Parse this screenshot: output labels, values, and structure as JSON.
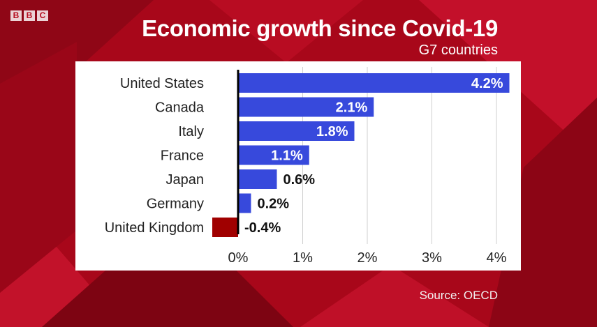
{
  "branding": {
    "logo_letters": [
      "B",
      "B",
      "C"
    ],
    "logo_color": "#b50c1e"
  },
  "colors": {
    "background": "#a8071a",
    "positive_bar": "#3749dc",
    "negative_bar": "#a00000",
    "grid": "#cfcfcf",
    "zero_axis": "#000000"
  },
  "chart_data": {
    "type": "bar",
    "orientation": "horizontal",
    "title": "Economic growth since Covid-19",
    "subtitle": "G7 countries",
    "source": "Source: OECD",
    "categories": [
      "United States",
      "Canada",
      "Italy",
      "France",
      "Japan",
      "Germany",
      "United Kingdom"
    ],
    "values": [
      4.2,
      2.1,
      1.8,
      1.1,
      0.6,
      0.2,
      -0.4
    ],
    "value_labels": [
      "4.2%",
      "2.1%",
      "1.8%",
      "1.1%",
      "0.6%",
      "0.2%",
      "-0.4%"
    ],
    "xlim": [
      -0.4,
      4.2
    ],
    "xticks": [
      0,
      1,
      2,
      3,
      4
    ],
    "xtick_labels": [
      "0%",
      "1%",
      "2%",
      "3%",
      "4%"
    ],
    "grid": true,
    "xlabel": "",
    "ylabel": ""
  }
}
